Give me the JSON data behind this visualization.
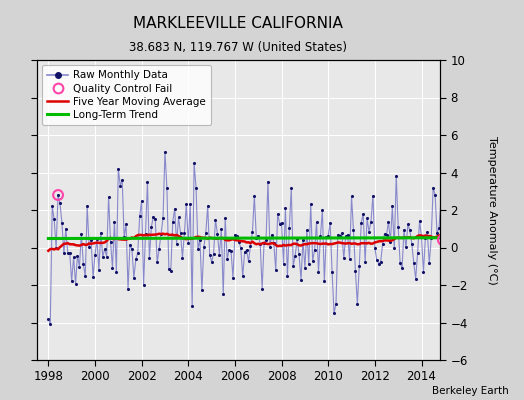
{
  "title": "MARKLEEVILLE CALIFORNIA",
  "subtitle": "38.683 N, 119.767 W (United States)",
  "ylabel": "Temperature Anomaly (°C)",
  "attribution": "Berkeley Earth",
  "xlim": [
    1997.5,
    2014.8
  ],
  "ylim": [
    -6,
    10
  ],
  "yticks": [
    -6,
    -4,
    -2,
    0,
    2,
    4,
    6,
    8,
    10
  ],
  "xticks": [
    1998,
    2000,
    2002,
    2004,
    2006,
    2008,
    2010,
    2012,
    2014
  ],
  "bg_color": "#e8e8e8",
  "fig_bg_color": "#d4d4d4",
  "raw_line_color": "#8888cc",
  "dot_color": "#111166",
  "ma_color": "#dd0000",
  "trend_color": "#00bb00",
  "qc_color": "#ff44aa",
  "long_term_trend_value": 0.5
}
